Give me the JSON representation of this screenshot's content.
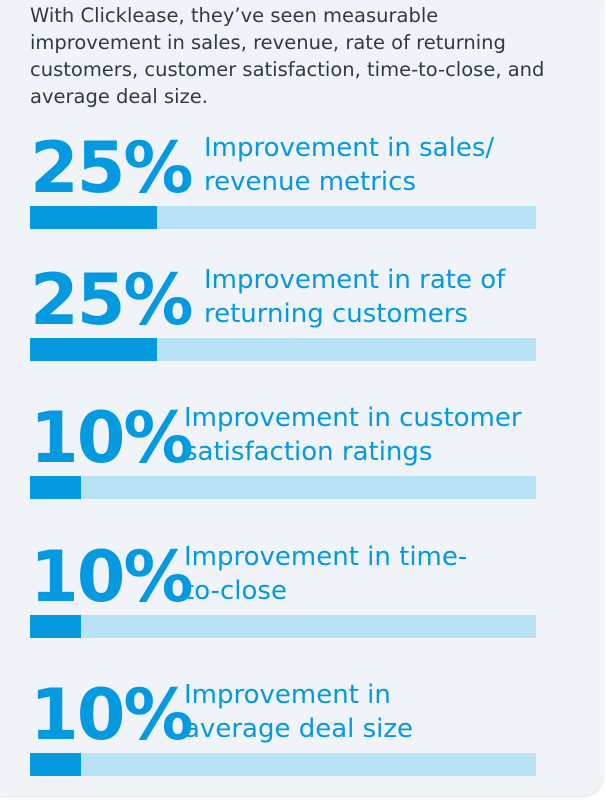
{
  "intro_text": "With Clicklease, they’ve seen measurable improvement in sales, revenue, rate of returning customers, customer satisfaction, time-to-close, and average deal size.",
  "stats": [
    {
      "percent_label": "25%",
      "value": 25,
      "line1": "Improvement in sales/",
      "line2": "revenue metrics"
    },
    {
      "percent_label": "25%",
      "value": 25,
      "line1": "Improvement in rate of",
      "line2": "returning customers"
    },
    {
      "percent_label": "10%",
      "value": 10,
      "line1": "Improvement in customer",
      "line2": "satisfaction ratings"
    },
    {
      "percent_label": "10%",
      "value": 10,
      "line1": "Improvement in time-",
      "line2": "to-close"
    },
    {
      "percent_label": "10%",
      "value": 10,
      "line1": "Improvement in",
      "line2": "average deal size"
    }
  ],
  "colors": {
    "accent": "#0599e0",
    "bar_track": "#b9e3f5",
    "card_background": "#f0f4f9",
    "body_text": "#303a46"
  }
}
